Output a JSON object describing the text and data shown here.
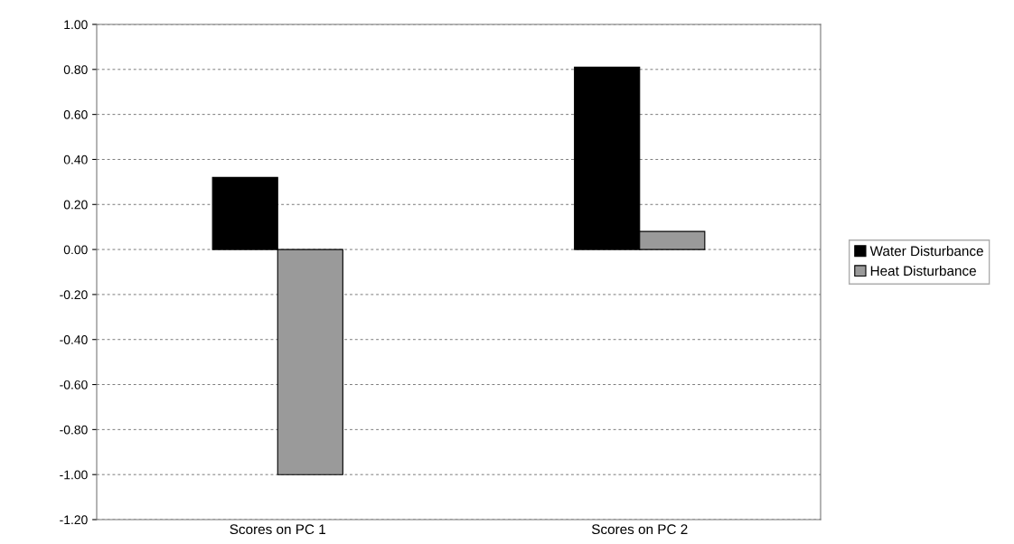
{
  "chart_data": {
    "type": "bar",
    "categories": [
      "Scores on PC 1",
      "Scores on PC 2"
    ],
    "series": [
      {
        "name": "Water Disturbance",
        "color": "#000000",
        "values": [
          0.32,
          0.81
        ]
      },
      {
        "name": "Heat Disturbance",
        "color": "#9a9a9a",
        "values": [
          -1.0,
          0.08
        ]
      }
    ],
    "ylim": [
      -1.2,
      1.0
    ],
    "yticks": [
      {
        "value": -1.2,
        "label": "-1.20"
      },
      {
        "value": -1.0,
        "label": "-1.00"
      },
      {
        "value": -0.8,
        "label": "-0.80"
      },
      {
        "value": -0.6,
        "label": "-0.60"
      },
      {
        "value": -0.4,
        "label": "-0.40"
      },
      {
        "value": -0.2,
        "label": "-0.20"
      },
      {
        "value": 0,
        "label": "0.00"
      },
      {
        "value": 0.2,
        "label": "0.20"
      },
      {
        "value": 0.4,
        "label": "0.40"
      },
      {
        "value": 0.6,
        "label": "0.60"
      },
      {
        "value": 0.8,
        "label": "0.80"
      },
      {
        "value": 1.0,
        "label": "1.00"
      }
    ],
    "grid": "y",
    "legend": "right"
  }
}
